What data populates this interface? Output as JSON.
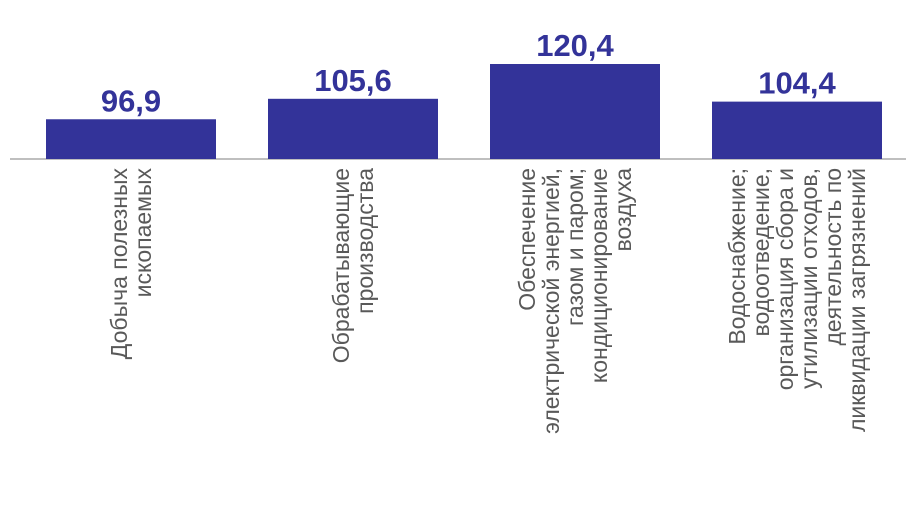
{
  "chart_data": {
    "type": "bar",
    "categories": [
      [
        "Добыча полезных",
        "ископаемых"
      ],
      [
        "Обрабатывающие",
        "производства"
      ],
      [
        "Обеспечение",
        "электрической энергией,",
        "газом и паром;",
        "кондиционирование",
        "воздуха"
      ],
      [
        "Водоснабжение;",
        "водоотведение,",
        "организация сбора и",
        "утилизации отходов,",
        "деятельность по",
        "ликвидации загрязнений"
      ]
    ],
    "values": [
      96.9,
      105.6,
      120.4,
      104.4
    ],
    "data_labels": [
      "96,9",
      "105,6",
      "120,4",
      "104,4"
    ],
    "baseline": 80,
    "ylim": [
      80,
      120.4
    ],
    "title": "",
    "xlabel": "",
    "ylabel": "",
    "grid": false,
    "legend": "none",
    "colors": {
      "bar": "#333399",
      "label": "#333399",
      "category_text": "#595959",
      "axis": "#bfbfbf"
    }
  }
}
